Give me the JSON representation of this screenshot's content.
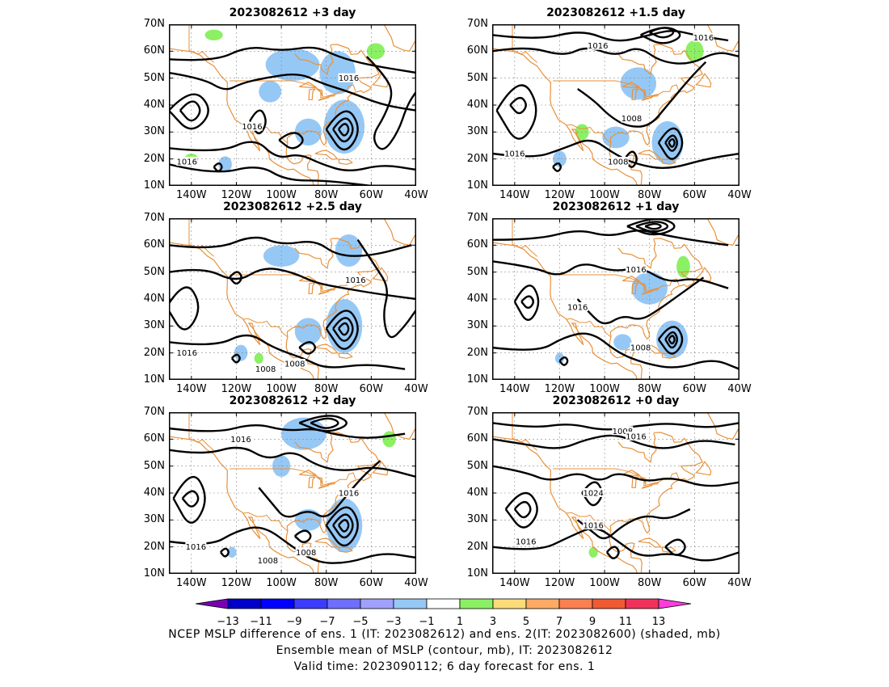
{
  "panels": [
    {
      "title": "2023082612  +3 day",
      "contour_labels": [
        "1016",
        "1016",
        "1016"
      ]
    },
    {
      "title": "2023082612  +1.5 day",
      "contour_labels": [
        "1016",
        "1016",
        "1008",
        "1008",
        "1016"
      ]
    },
    {
      "title": "2023082612  +2.5 day",
      "contour_labels": [
        "1016",
        "1016",
        "1008",
        "1008"
      ]
    },
    {
      "title": "2023082612  +1 day",
      "contour_labels": [
        "1016",
        "1016",
        "1008"
      ]
    },
    {
      "title": "2023082612  +2 day",
      "contour_labels": [
        "1016",
        "1016",
        "1016",
        "1008",
        "1008"
      ]
    },
    {
      "title": "2023082612  +0 day",
      "contour_labels": [
        "1008",
        "1016",
        "1024",
        "1016",
        "1016"
      ]
    }
  ],
  "lat_labels": [
    "70N",
    "60N",
    "50N",
    "40N",
    "30N",
    "20N",
    "10N"
  ],
  "lon_labels": [
    "140W",
    "120W",
    "100W",
    "80W",
    "60W",
    "40W"
  ],
  "colorbar": {
    "labels": [
      "-13",
      "-11",
      "-9",
      "-7",
      "-5",
      "-3",
      "-1",
      "1",
      "3",
      "5",
      "7",
      "9",
      "11",
      "13"
    ],
    "colors": [
      "#7a00b4",
      "#0000c8",
      "#0000ff",
      "#3c3cff",
      "#6e6eff",
      "#a0a0ff",
      "#96c8f5",
      "#ffffff",
      "#8cf064",
      "#fadc78",
      "#ffaa64",
      "#fa8050",
      "#f05a32",
      "#f0325a",
      "#ff3cdc"
    ]
  },
  "captions": [
    "NCEP MSLP difference of ens. 1 (IT: 2023082612) and ens. 2(IT: 2023082600) (shaded, mb)",
    "Ensemble mean of MSLP (contour, mb), IT: 2023082612",
    "Valid time: 2023090112; 6 day forecast for ens. 1"
  ]
}
